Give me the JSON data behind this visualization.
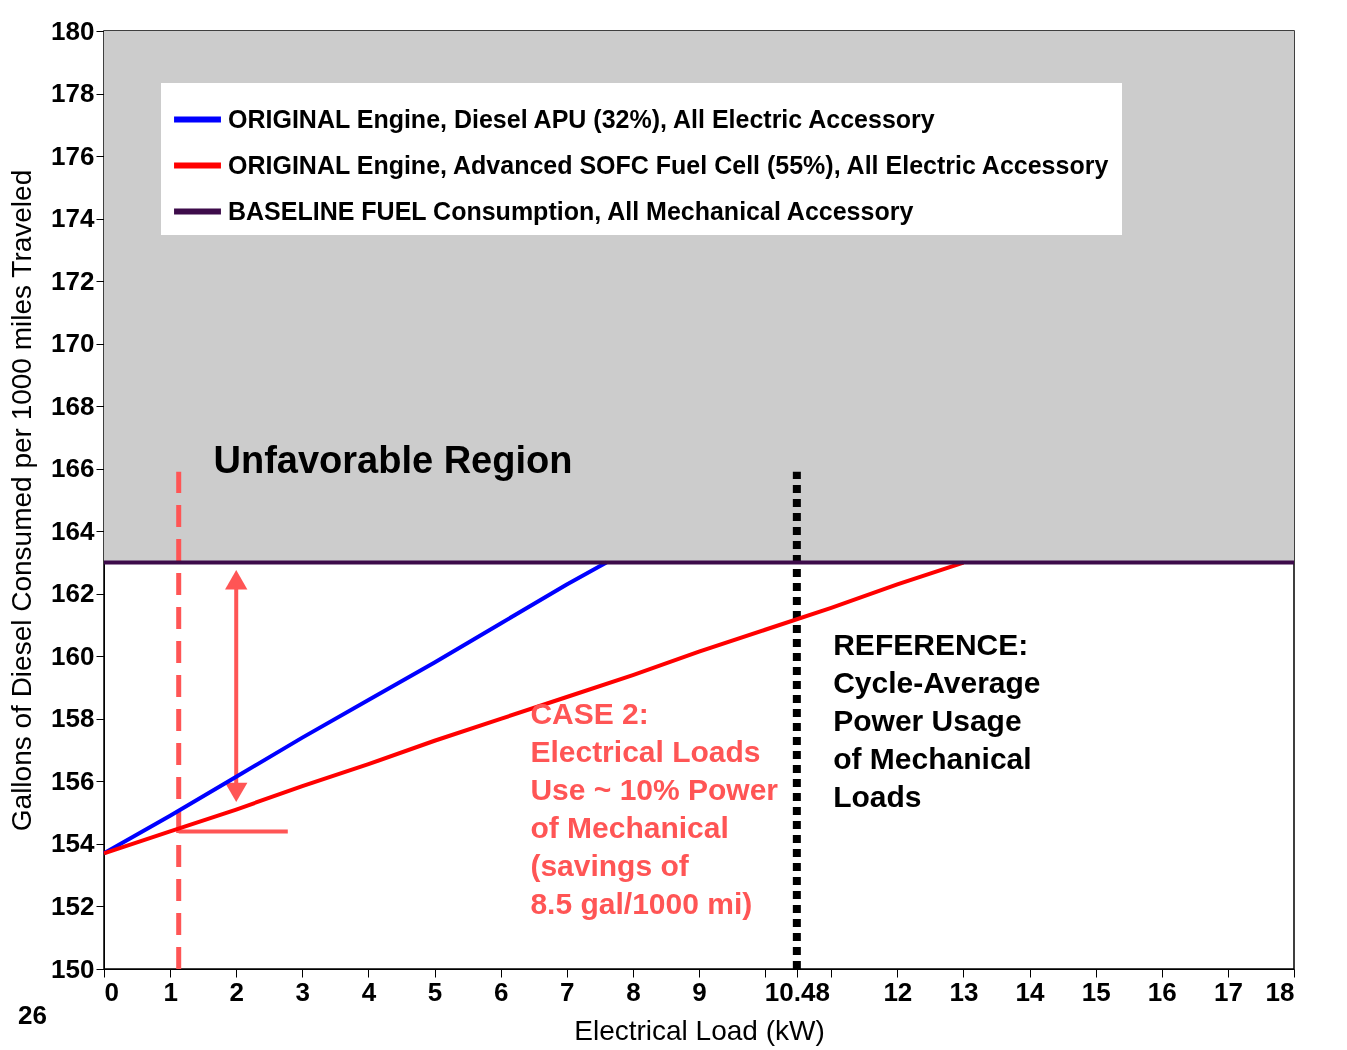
{
  "chart_data": {
    "type": "line",
    "xlabel": "Electrical Load (kW)",
    "ylabel": "Gallons of Diesel Consumed per 1000 miles Traveled",
    "xlim": [
      0,
      18
    ],
    "ylim": [
      150,
      180
    ],
    "xticks": [
      0,
      1,
      2,
      3,
      4,
      5,
      6,
      7,
      8,
      9,
      {
        "value": 10,
        "label": null
      },
      10.48,
      {
        "value": 11,
        "label": null
      },
      12,
      13,
      14,
      15,
      16,
      17,
      18
    ],
    "yticks": [
      150,
      152,
      154,
      156,
      158,
      160,
      162,
      164,
      166,
      168,
      170,
      172,
      174,
      176,
      178,
      180
    ],
    "grid": false,
    "legend": "top left",
    "series": [
      {
        "name": "ORIGINAL Engine, Diesel APU (32%), All Electric Accessory",
        "color": "#0000ff",
        "x": [
          0,
          1,
          2,
          3,
          4,
          5,
          6,
          7,
          7.6
        ],
        "values": [
          153.7,
          154.9,
          156.15,
          157.4,
          158.6,
          159.8,
          161.05,
          162.3,
          163.0
        ]
      },
      {
        "name": "ORIGINAL Engine, Advanced SOFC Fuel Cell (55%), All Electric Accessory",
        "color": "#ff0000",
        "x": [
          0,
          1,
          2,
          3,
          4,
          5,
          6,
          7,
          8,
          9,
          10,
          11,
          12,
          13
        ],
        "values": [
          153.7,
          154.4,
          155.1,
          155.85,
          156.55,
          157.3,
          158.0,
          158.7,
          159.4,
          160.15,
          160.85,
          161.55,
          162.3,
          163.0
        ]
      },
      {
        "name": "BASELINE FUEL Consumption, All Mechanical Accessory",
        "color": "#3d0b4a",
        "x": [
          0,
          18
        ],
        "values": [
          163,
          163
        ]
      }
    ],
    "bands": [
      {
        "axis": "y",
        "from": 163,
        "to": 180,
        "label": "Unfavorable Region",
        "color": "#cccccc"
      }
    ],
    "ref_lines": [
      {
        "axis": "x",
        "value": 1.13,
        "color": "#ff5555",
        "line_style": "dashed"
      },
      {
        "axis": "x",
        "value": 10.48,
        "color": "#000000",
        "line_style": "dotted",
        "label": "REFERENCE:\nCycle-Average\nPower Usage\nof Mechanical\nLoads"
      }
    ],
    "annotations": [
      "CASE 2:\nElectrical Loads\nUse ~ 10% Power\nof Mechanical\n(savings of\n8.5 gal/1000 mi)",
      "26"
    ]
  }
}
